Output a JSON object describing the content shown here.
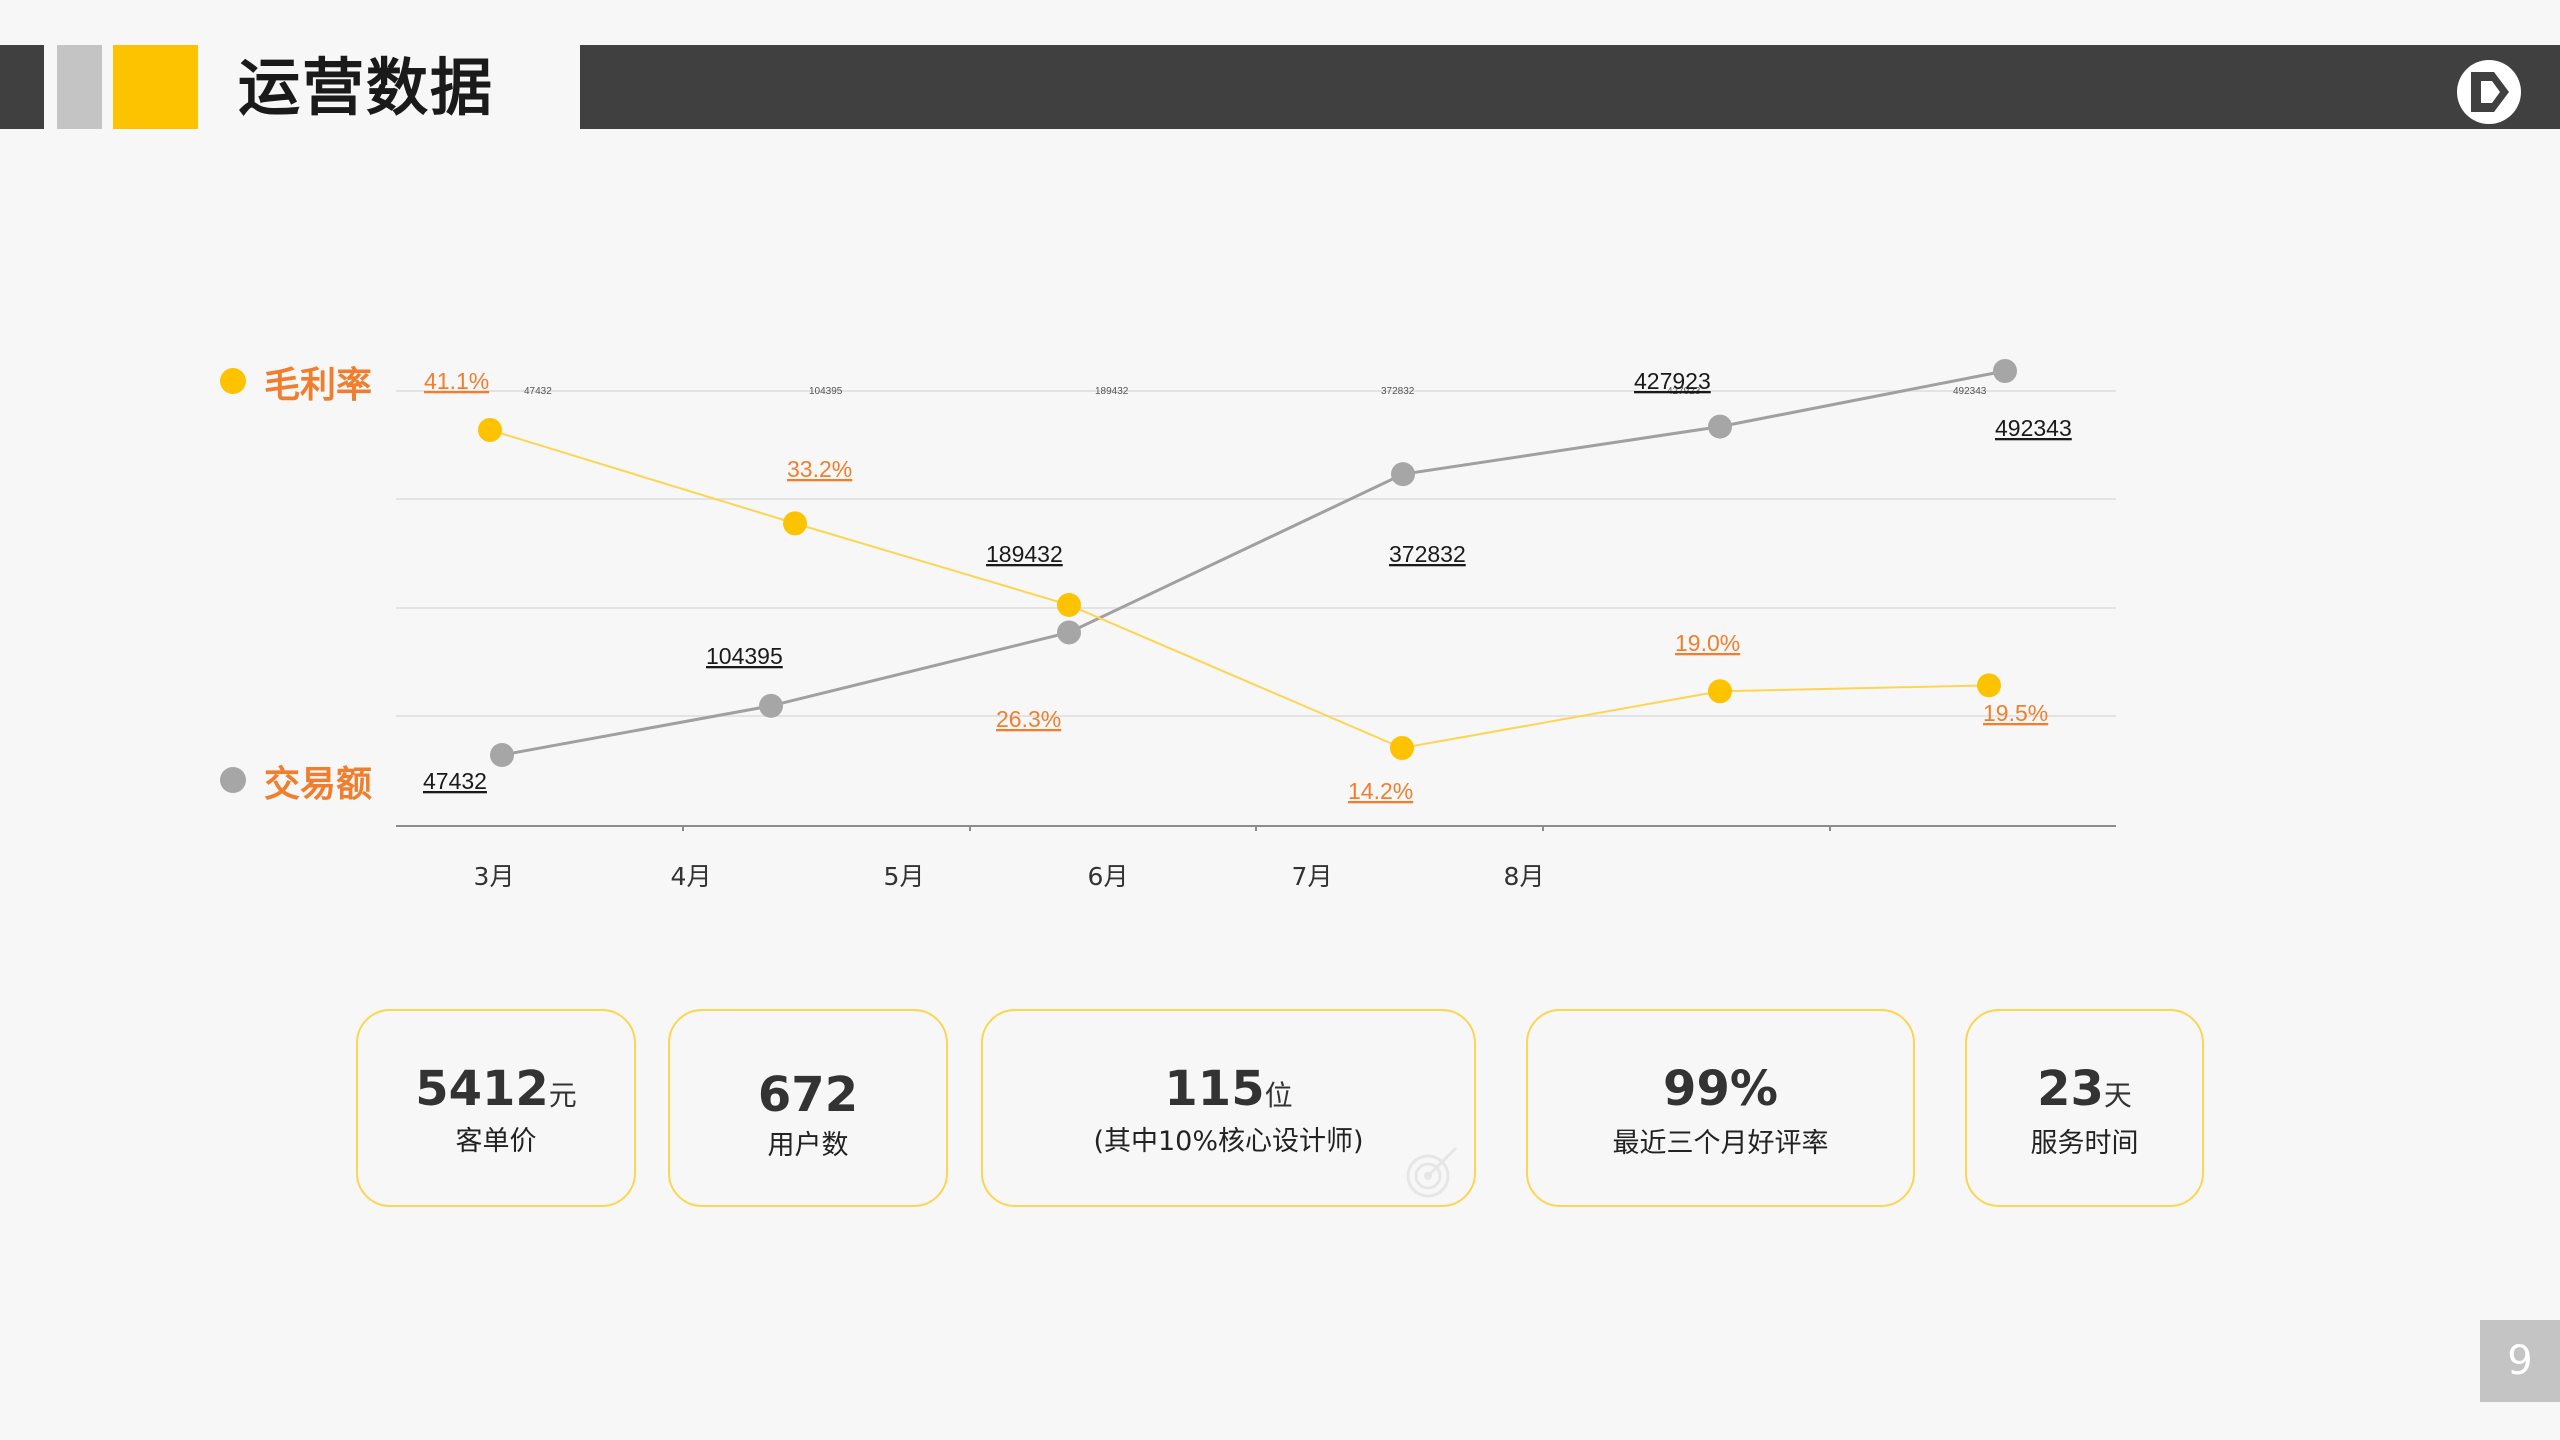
{
  "header": {
    "title": "运营数据"
  },
  "legend": {
    "margin_label": "毛利率",
    "volume_label": "交易额"
  },
  "colors": {
    "accent_yellow": "#fec300",
    "label_orange": "#ef7f2f",
    "series_gray": "#a6a6a6",
    "header_dark": "#404040"
  },
  "chart_data": {
    "type": "line",
    "categories": [
      "3月",
      "4月",
      "5月",
      "6月",
      "7月",
      "8月"
    ],
    "series": [
      {
        "name": "交易额",
        "values": [
          47432,
          104395,
          189432,
          372832,
          427923,
          492343
        ],
        "labels": [
          "47432",
          "104395",
          "189432",
          "372832",
          "427923",
          "492343"
        ]
      },
      {
        "name": "毛利率",
        "values": [
          41.1,
          33.2,
          26.3,
          14.2,
          19.0,
          19.5
        ],
        "labels": [
          "41.1%",
          "33.2%",
          "26.3%",
          "14.2%",
          "19.0%",
          "19.5%"
        ]
      }
    ],
    "top_value_labels": [
      "47432",
      "104395",
      "189432",
      "372832",
      "427923",
      "492343"
    ],
    "grid": true,
    "legend_placement": "left"
  },
  "stats": [
    {
      "value": "5412",
      "unit": "元",
      "label": "客单价"
    },
    {
      "value": "672",
      "unit": "",
      "label": "用户数"
    },
    {
      "value": "115",
      "unit": "位",
      "label": "(其中10%核心设计师)"
    },
    {
      "value": "99%",
      "unit": "",
      "label": "最近三个月好评率"
    },
    {
      "value": "23",
      "unit": "天",
      "label": "服务时间"
    }
  ],
  "icons": {
    "logo": "d-logo-icon",
    "target": "target-icon"
  },
  "page_number": "9"
}
